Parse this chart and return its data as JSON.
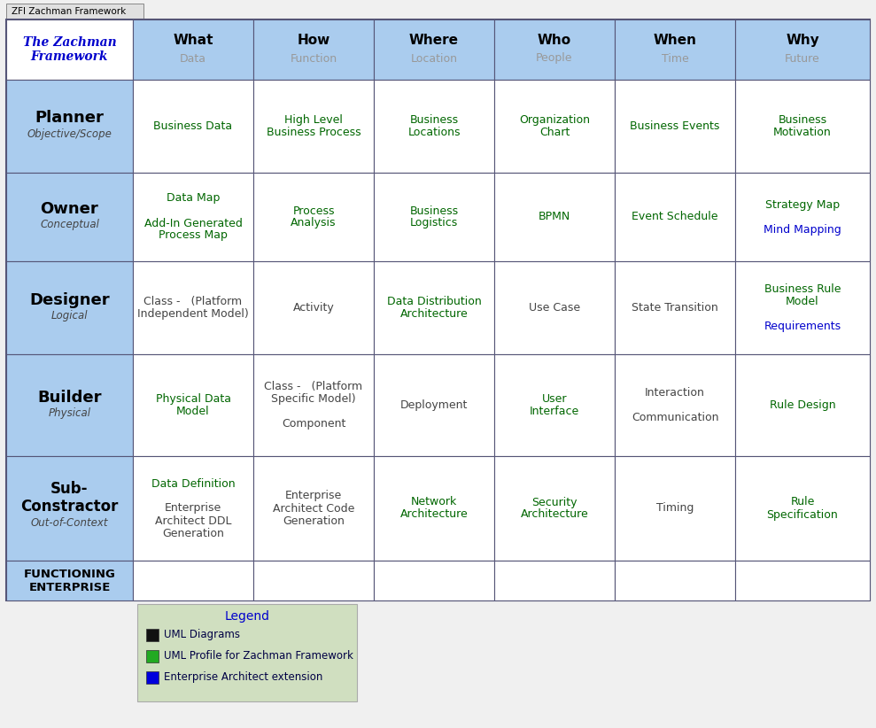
{
  "title": "ZFI Zachman Framework",
  "bg_color": "#f0f0f0",
  "table_bg": "#ffffff",
  "header_bg": "#aaccee",
  "row_label_bg": "#aaccee",
  "cell_bg": "#ffffff",
  "legend_bg": "#d0dfc0",
  "green_color": "#006600",
  "blue_color": "#0000cc",
  "dark_text": "#444444",
  "gray_text": "#999999",
  "black_text": "#000000",
  "border_color": "#555577",
  "columns": [
    "What\nData",
    "How\nFunction",
    "Where\nLocation",
    "Who\nPeople",
    "When\nTime",
    "Why\nFuture"
  ],
  "row_labels": [
    {
      "bold": "Planner",
      "sub": "Objective/Scope"
    },
    {
      "bold": "Owner",
      "sub": "Conceptual"
    },
    {
      "bold": "Designer",
      "sub": "Logical"
    },
    {
      "bold": "Builder",
      "sub": "Physical"
    },
    {
      "bold": "Sub-\nConstractor",
      "sub": "Out-of-Context"
    },
    {
      "bold": "FUNCTIONING\nENTERPRISE",
      "sub": ""
    }
  ],
  "cells": [
    [
      {
        "lines": [
          {
            "text": "Business Data",
            "color": "green"
          }
        ]
      },
      {
        "lines": [
          {
            "text": "High Level\nBusiness Process",
            "color": "green"
          }
        ]
      },
      {
        "lines": [
          {
            "text": "Business\nLocations",
            "color": "green"
          }
        ]
      },
      {
        "lines": [
          {
            "text": "Organization\nChart",
            "color": "green"
          }
        ]
      },
      {
        "lines": [
          {
            "text": "Business Events",
            "color": "green"
          }
        ]
      },
      {
        "lines": [
          {
            "text": "Business\nMotivation",
            "color": "green"
          }
        ]
      }
    ],
    [
      {
        "lines": [
          {
            "text": "Data Map",
            "color": "green"
          },
          {
            "text": "",
            "color": "green"
          },
          {
            "text": "Add-In Generated\nProcess Map",
            "color": "green"
          }
        ]
      },
      {
        "lines": [
          {
            "text": "Process\nAnalysis",
            "color": "green"
          }
        ]
      },
      {
        "lines": [
          {
            "text": "Business\nLogistics",
            "color": "green"
          }
        ]
      },
      {
        "lines": [
          {
            "text": "BPMN",
            "color": "green"
          }
        ]
      },
      {
        "lines": [
          {
            "text": "Event Schedule",
            "color": "green"
          }
        ]
      },
      {
        "lines": [
          {
            "text": "Strategy Map",
            "color": "green"
          },
          {
            "text": "",
            "color": "green"
          },
          {
            "text": "Mind Mapping",
            "color": "blue"
          }
        ]
      }
    ],
    [
      {
        "lines": [
          {
            "text": "Class -   (Platform\nIndependent Model)",
            "color": "dark"
          }
        ]
      },
      {
        "lines": [
          {
            "text": "Activity",
            "color": "dark"
          }
        ]
      },
      {
        "lines": [
          {
            "text": "Data Distribution\nArchitecture",
            "color": "green"
          }
        ]
      },
      {
        "lines": [
          {
            "text": "Use Case",
            "color": "dark"
          }
        ]
      },
      {
        "lines": [
          {
            "text": "State Transition",
            "color": "dark"
          }
        ]
      },
      {
        "lines": [
          {
            "text": "Business Rule\nModel",
            "color": "green"
          },
          {
            "text": "",
            "color": "green"
          },
          {
            "text": "Requirements",
            "color": "blue"
          }
        ]
      }
    ],
    [
      {
        "lines": [
          {
            "text": "Physical Data\nModel",
            "color": "green"
          }
        ]
      },
      {
        "lines": [
          {
            "text": "Class -   (Platform\nSpecific Model)",
            "color": "dark"
          },
          {
            "text": "",
            "color": "dark"
          },
          {
            "text": "Component",
            "color": "dark"
          }
        ]
      },
      {
        "lines": [
          {
            "text": "Deployment",
            "color": "dark"
          }
        ]
      },
      {
        "lines": [
          {
            "text": "User\nInterface",
            "color": "green"
          }
        ]
      },
      {
        "lines": [
          {
            "text": "Interaction",
            "color": "dark"
          },
          {
            "text": "",
            "color": "dark"
          },
          {
            "text": "Communication",
            "color": "dark"
          }
        ]
      },
      {
        "lines": [
          {
            "text": "Rule Design",
            "color": "green"
          }
        ]
      }
    ],
    [
      {
        "lines": [
          {
            "text": "Data Definition",
            "color": "green"
          },
          {
            "text": "",
            "color": "dark"
          },
          {
            "text": "Enterprise\nArchitect DDL\nGeneration",
            "color": "dark"
          }
        ]
      },
      {
        "lines": [
          {
            "text": "Enterprise\nArchitect Code\nGeneration",
            "color": "dark"
          }
        ]
      },
      {
        "lines": [
          {
            "text": "Network\nArchitecture",
            "color": "green"
          }
        ]
      },
      {
        "lines": [
          {
            "text": "Security\nArchitecture",
            "color": "green"
          }
        ]
      },
      {
        "lines": [
          {
            "text": "Timing",
            "color": "dark"
          }
        ]
      },
      {
        "lines": [
          {
            "text": "Rule\nSpecification",
            "color": "green"
          }
        ]
      }
    ],
    [
      {
        "lines": []
      },
      {
        "lines": []
      },
      {
        "lines": []
      },
      {
        "lines": []
      },
      {
        "lines": []
      },
      {
        "lines": []
      }
    ]
  ],
  "legend_items": [
    {
      "color": "#111111",
      "label": "UML Diagrams"
    },
    {
      "color": "#22aa22",
      "label": "UML Profile for Zachman Framework"
    },
    {
      "color": "#0000dd",
      "label": "Enterprise Architect extension"
    }
  ]
}
